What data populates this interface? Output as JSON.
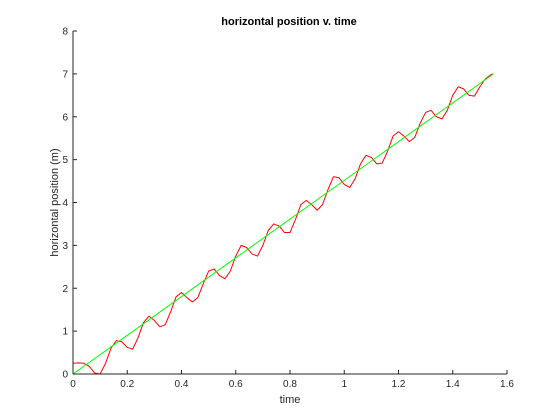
{
  "chart_data": {
    "type": "line",
    "title": "horizontal position v. time",
    "xlabel": "time",
    "ylabel": "horizontal position (m)",
    "xlim": [
      0,
      1.6
    ],
    "ylim": [
      0,
      8
    ],
    "xticks": [
      0,
      0.2,
      0.4,
      0.6,
      0.8,
      1,
      1.2,
      1.4,
      1.6
    ],
    "xtick_labels": [
      "0",
      "0.2",
      "0.4",
      "0.6",
      "0.8",
      "1",
      "1.2",
      "1.4",
      "1.6"
    ],
    "yticks": [
      0,
      1,
      2,
      3,
      4,
      5,
      6,
      7,
      8
    ],
    "ytick_labels": [
      "0",
      "1",
      "2",
      "3",
      "4",
      "5",
      "6",
      "7",
      "8"
    ],
    "grid": false,
    "series": [
      {
        "color": "#ff0000",
        "x": [
          0,
          0.02,
          0.04,
          0.06,
          0.08,
          0.1,
          0.12,
          0.14,
          0.16,
          0.18,
          0.2,
          0.22,
          0.24,
          0.26,
          0.28,
          0.3,
          0.32,
          0.34,
          0.36,
          0.38,
          0.4,
          0.42,
          0.44,
          0.46,
          0.48,
          0.5,
          0.52,
          0.54,
          0.56,
          0.58,
          0.6,
          0.62,
          0.64,
          0.66,
          0.68,
          0.7,
          0.72,
          0.74,
          0.76,
          0.78,
          0.8,
          0.82,
          0.84,
          0.86,
          0.88,
          0.9,
          0.92,
          0.94,
          0.96,
          0.98,
          1.0,
          1.02,
          1.04,
          1.06,
          1.08,
          1.1,
          1.12,
          1.14,
          1.16,
          1.18,
          1.2,
          1.22,
          1.24,
          1.26,
          1.28,
          1.3,
          1.32,
          1.34,
          1.36,
          1.38,
          1.4,
          1.42,
          1.44,
          1.46,
          1.48,
          1.5,
          1.52,
          1.54,
          1.55
        ],
        "y": [
          0.25,
          0.26,
          0.25,
          0.18,
          0.02,
          0.0,
          0.25,
          0.6,
          0.78,
          0.75,
          0.62,
          0.58,
          0.85,
          1.2,
          1.35,
          1.25,
          1.1,
          1.15,
          1.45,
          1.8,
          1.9,
          1.78,
          1.68,
          1.78,
          2.1,
          2.4,
          2.45,
          2.3,
          2.22,
          2.4,
          2.75,
          3.0,
          2.95,
          2.8,
          2.75,
          3.0,
          3.35,
          3.5,
          3.45,
          3.3,
          3.3,
          3.6,
          3.95,
          4.05,
          3.95,
          3.82,
          3.95,
          4.3,
          4.6,
          4.58,
          4.42,
          4.35,
          4.55,
          4.9,
          5.1,
          5.05,
          4.9,
          4.92,
          5.2,
          5.55,
          5.65,
          5.55,
          5.42,
          5.52,
          5.85,
          6.1,
          6.15,
          6.0,
          5.95,
          6.15,
          6.5,
          6.7,
          6.65,
          6.5,
          6.48,
          6.7,
          6.88,
          6.98,
          7.0
        ]
      },
      {
        "color": "#00ff00",
        "x": [
          0,
          1.55
        ],
        "y": [
          0,
          7.0
        ]
      }
    ]
  }
}
